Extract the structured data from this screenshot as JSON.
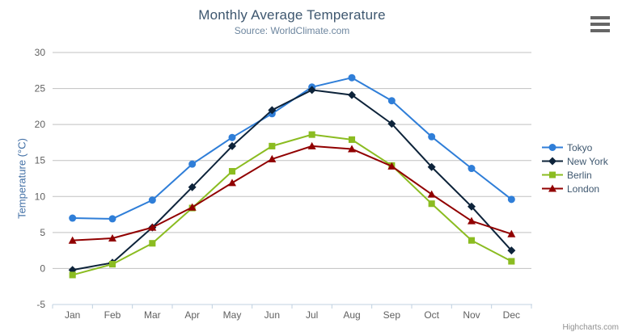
{
  "page": {
    "credits": "Highcharts.com"
  },
  "chart_data": {
    "type": "line",
    "title": "Monthly Average Temperature",
    "subtitle": "Source: WorldClimate.com",
    "xlabel": "",
    "ylabel": "Temperature (°C)",
    "categories": [
      "Jan",
      "Feb",
      "Mar",
      "Apr",
      "May",
      "Jun",
      "Jul",
      "Aug",
      "Sep",
      "Oct",
      "Nov",
      "Dec"
    ],
    "ylim": [
      -5,
      30
    ],
    "yticks": [
      -5,
      0,
      5,
      10,
      15,
      20,
      25,
      30
    ],
    "grid": true,
    "legend_position": "right",
    "series": [
      {
        "name": "Tokyo",
        "color": "#2f7ed8",
        "marker": "circle",
        "values": [
          7.0,
          6.9,
          9.5,
          14.5,
          18.2,
          21.5,
          25.2,
          26.5,
          23.3,
          18.3,
          13.9,
          9.6
        ]
      },
      {
        "name": "New York",
        "color": "#0d233a",
        "marker": "diamond",
        "values": [
          -0.2,
          0.8,
          5.7,
          11.3,
          17.0,
          22.0,
          24.8,
          24.1,
          20.1,
          14.1,
          8.6,
          2.5
        ]
      },
      {
        "name": "Berlin",
        "color": "#8bbc21",
        "marker": "square",
        "values": [
          -0.9,
          0.6,
          3.5,
          8.4,
          13.5,
          17.0,
          18.6,
          17.9,
          14.3,
          9.0,
          3.9,
          1.0
        ]
      },
      {
        "name": "London",
        "color": "#910000",
        "marker": "triangle-up",
        "values": [
          3.9,
          4.2,
          5.7,
          8.5,
          11.9,
          15.2,
          17.0,
          16.6,
          14.2,
          10.3,
          6.6,
          4.8
        ]
      }
    ],
    "colors": {
      "grid": "#C0C0C0",
      "axis_line": "#C0D0E0",
      "tick": "#C0D0E0",
      "title": "#3E576F",
      "subtitle": "#6D869F",
      "axis_label": "#606060",
      "y_axis_title": "#4572A7",
      "legend_text": "#3E576F",
      "credits": "#909090",
      "menu_icon": "#666666",
      "background": "#FFFFFF"
    }
  }
}
